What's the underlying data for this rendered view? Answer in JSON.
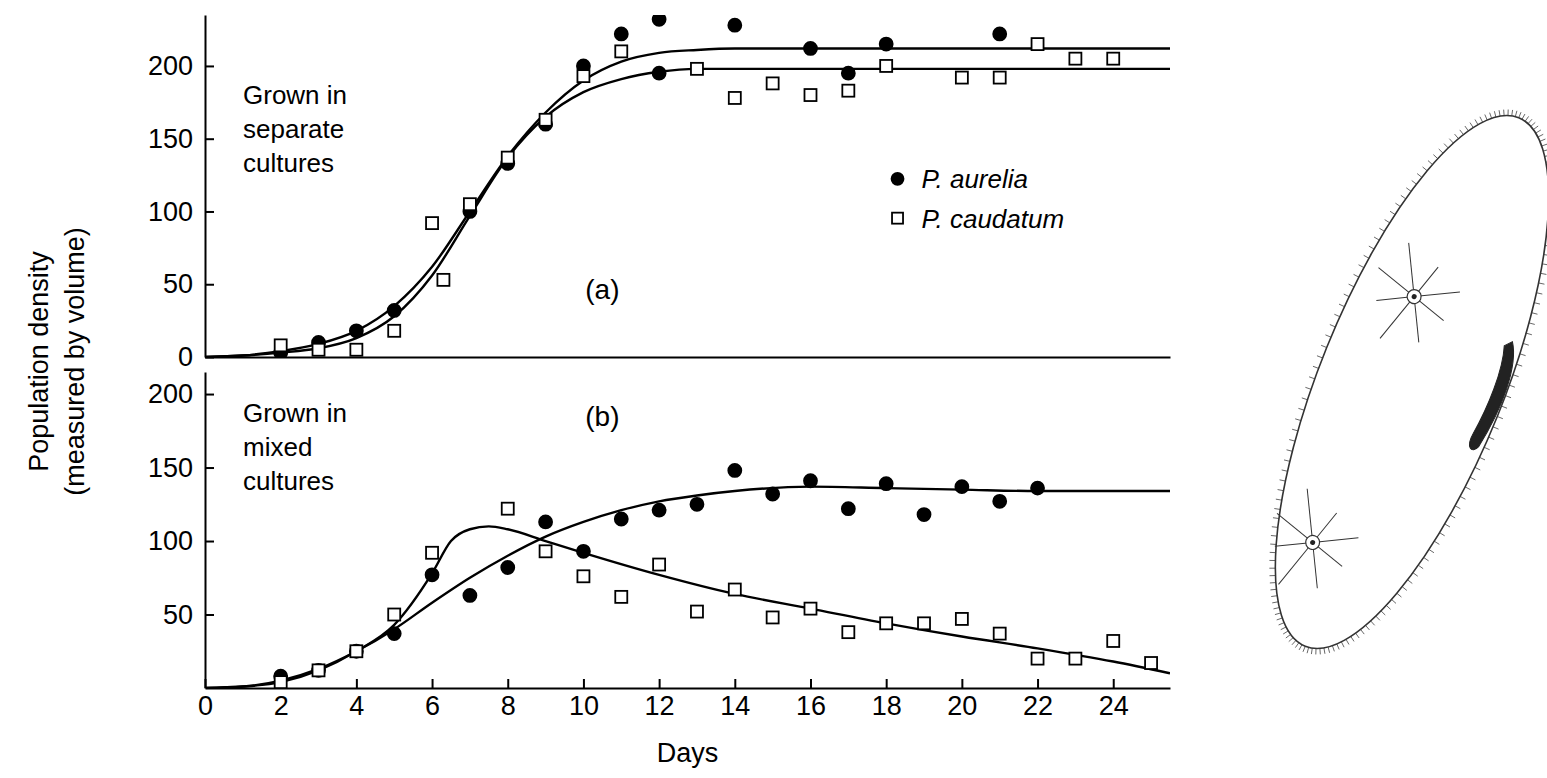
{
  "chart_data": {
    "type": "scatter",
    "ylabel": "Population density (measured by volume)",
    "xlabel": "Days",
    "xlim": [
      0,
      25.5
    ],
    "xticks": [
      0,
      2,
      4,
      6,
      8,
      10,
      12,
      14,
      16,
      18,
      20,
      22,
      24
    ],
    "panels": [
      {
        "panel_label": "(a)",
        "annotation": "Grown in separate cultures",
        "ylim": [
          0,
          235
        ],
        "yticks": [
          0,
          50,
          100,
          150,
          200
        ],
        "tick_labels": "y",
        "legend": "right",
        "series": [
          {
            "name": "P. aurelia",
            "color": "#000000",
            "marker": "circle",
            "x": [
              2,
              3,
              4,
              5,
              7,
              8,
              9,
              10,
              11,
              12,
              12,
              14,
              16,
              17,
              18,
              21
            ],
            "values": [
              3,
              10,
              18,
              32,
              100,
              133,
              160,
              200,
              222,
              232,
              195,
              228,
              212,
              195,
              215,
              222
            ],
            "curve": {
              "x": [
                0,
                1,
                2,
                3,
                4,
                5,
                6,
                7,
                8,
                9,
                10,
                11,
                12,
                13,
                14,
                16,
                18,
                20,
                22,
                24,
                25.5
              ],
              "values": [
                0,
                1,
                4,
                9,
                18,
                35,
                62,
                100,
                138,
                168,
                190,
                203,
                209,
                211,
                212,
                212,
                212,
                212,
                212,
                212,
                212
              ]
            }
          },
          {
            "name": "P. caudatum",
            "color": "#000000",
            "marker": "open-square",
            "x": [
              2,
              3,
              4,
              5,
              6,
              6.3,
              7,
              8,
              9,
              10,
              11,
              13,
              14,
              15,
              16,
              17,
              18,
              20,
              21,
              22,
              23,
              24
            ],
            "values": [
              8,
              5,
              5,
              18,
              92,
              53,
              105,
              137,
              163,
              193,
              210,
              198,
              178,
              188,
              180,
              183,
              200,
              192,
              192,
              215,
              205,
              205
            ],
            "curve": {
              "x": [
                0,
                1,
                2,
                3,
                4,
                5,
                6,
                7,
                8,
                9,
                10,
                11,
                12,
                13,
                14,
                16,
                18,
                20,
                22,
                24,
                25.5
              ],
              "values": [
                0,
                1,
                3,
                6,
                13,
                28,
                56,
                97,
                137,
                165,
                182,
                191,
                196,
                198,
                198,
                198,
                198,
                198,
                198,
                198,
                198
              ]
            }
          }
        ]
      },
      {
        "panel_label": "(b)",
        "annotation": "Grown in mixed cultures",
        "ylim": [
          0,
          215
        ],
        "yticks": [
          50,
          100,
          150,
          200
        ],
        "series": [
          {
            "name": "P. aurelia",
            "color": "#000000",
            "marker": "circle",
            "x": [
              2,
              3,
              4,
              5,
              6,
              7,
              8,
              9,
              10,
              11,
              12,
              13,
              14,
              15,
              16,
              17,
              18,
              19,
              20,
              21,
              22
            ],
            "values": [
              8,
              12,
              25,
              37,
              77,
              63,
              82,
              113,
              93,
              115,
              121,
              125,
              148,
              132,
              141,
              122,
              139,
              118,
              137,
              127,
              136
            ],
            "curve": {
              "x": [
                0,
                1,
                2,
                3,
                4,
                5,
                6,
                7,
                8,
                9,
                10,
                11,
                12,
                13,
                14,
                16,
                18,
                20,
                22,
                24,
                25.5
              ],
              "values": [
                0,
                1,
                5,
                13,
                25,
                40,
                58,
                75,
                90,
                103,
                113,
                121,
                127,
                131,
                134,
                137,
                136,
                135,
                134,
                134,
                134
              ]
            }
          },
          {
            "name": "P. caudatum",
            "color": "#000000",
            "marker": "open-square",
            "x": [
              2,
              3,
              4,
              5,
              6,
              8,
              9,
              10,
              11,
              12,
              13,
              14,
              15,
              16,
              17,
              18,
              19,
              20,
              21,
              22,
              23,
              24,
              25
            ],
            "values": [
              4,
              12,
              25,
              50,
              92,
              122,
              93,
              76,
              62,
              84,
              52,
              67,
              48,
              54,
              38,
              44,
              44,
              47,
              37,
              20,
              20,
              32,
              17
            ],
            "curve": {
              "x": [
                0,
                1,
                2,
                3,
                4,
                5,
                6,
                6.5,
                7,
                7.5,
                8,
                9,
                10,
                12,
                14,
                16,
                18,
                20,
                22,
                24,
                25.5
              ],
              "values": [
                0,
                1,
                4,
                12,
                25,
                43,
                78,
                100,
                108,
                110,
                108,
                100,
                92,
                77,
                64,
                54,
                44,
                35,
                27,
                18,
                10
              ]
            }
          }
        ]
      }
    ]
  }
}
